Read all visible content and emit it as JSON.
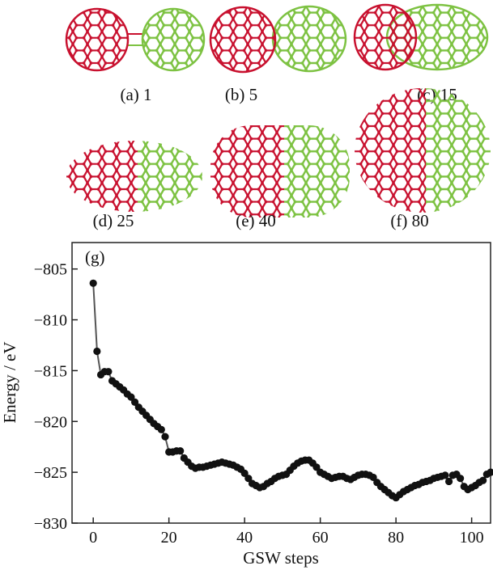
{
  "panels": [
    {
      "id": "a",
      "label": "(a) 1"
    },
    {
      "id": "b",
      "label": "(b) 5"
    },
    {
      "id": "c",
      "label": "(c) 15"
    },
    {
      "id": "d",
      "label": "(d) 25"
    },
    {
      "id": "e",
      "label": "(e) 40"
    },
    {
      "id": "f",
      "label": "(f) 80"
    }
  ],
  "colors": {
    "cage_left": "#c8102e",
    "cage_right": "#7dc242",
    "series": "#111111",
    "line": "#555555"
  },
  "chart_data": {
    "type": "line",
    "panel_label": "(g)",
    "title": "",
    "xlabel": "GSW steps",
    "ylabel": "Energy / eV",
    "xlim": [
      -5.6,
      105
    ],
    "ylim": [
      -830,
      -802.4
    ],
    "xticks": [
      0,
      20,
      40,
      60,
      80,
      100
    ],
    "xtick_labels": [
      "0",
      "20",
      "40",
      "60",
      "80",
      "100"
    ],
    "yticks": [
      -805,
      -810,
      -815,
      -820,
      -825,
      -830
    ],
    "ytick_labels": [
      "−805",
      "−810",
      "−815",
      "−820",
      "−825",
      "−830"
    ],
    "grid": false,
    "series": [
      {
        "name": "Energy",
        "x": [
          0,
          1,
          2,
          3,
          4,
          5,
          6,
          7,
          8,
          9,
          10,
          11,
          12,
          13,
          14,
          15,
          16,
          17,
          18,
          19,
          20,
          21,
          22,
          23,
          24,
          25,
          26,
          27,
          28,
          29,
          30,
          31,
          32,
          33,
          34,
          35,
          36,
          37,
          38,
          39,
          40,
          41,
          42,
          43,
          44,
          45,
          46,
          47,
          48,
          49,
          50,
          51,
          52,
          53,
          54,
          55,
          56,
          57,
          58,
          59,
          60,
          61,
          62,
          63,
          64,
          65,
          66,
          67,
          68,
          69,
          70,
          71,
          72,
          73,
          74,
          75,
          76,
          77,
          78,
          79,
          80,
          81,
          82,
          83,
          84,
          85,
          86,
          87,
          88,
          89,
          90,
          91,
          92,
          93,
          94,
          95,
          96,
          97,
          98,
          99,
          100,
          101,
          102,
          103,
          104,
          105
        ],
        "y": [
          -806.4,
          -813.1,
          -815.4,
          -815.1,
          -815.1,
          -816.0,
          -816.3,
          -816.6,
          -816.9,
          -817.3,
          -817.6,
          -818.1,
          -818.6,
          -819.0,
          -819.4,
          -819.8,
          -820.2,
          -820.5,
          -820.8,
          -821.5,
          -823.0,
          -823.0,
          -822.9,
          -822.9,
          -823.6,
          -824.0,
          -824.4,
          -824.6,
          -824.5,
          -824.5,
          -824.4,
          -824.3,
          -824.2,
          -824.1,
          -824.0,
          -824.1,
          -824.2,
          -824.3,
          -824.5,
          -824.7,
          -825.1,
          -825.6,
          -826.1,
          -826.3,
          -826.5,
          -826.4,
          -826.1,
          -825.9,
          -825.6,
          -825.4,
          -825.3,
          -825.2,
          -824.8,
          -824.4,
          -824.1,
          -823.9,
          -823.8,
          -823.8,
          -824.1,
          -824.5,
          -825.0,
          -825.2,
          -825.4,
          -825.6,
          -825.5,
          -825.4,
          -825.4,
          -825.6,
          -825.7,
          -825.5,
          -825.3,
          -825.2,
          -825.2,
          -825.3,
          -825.5,
          -826.0,
          -826.4,
          -826.7,
          -827.0,
          -827.3,
          -827.5,
          -827.2,
          -826.9,
          -826.7,
          -826.5,
          -826.3,
          -826.2,
          -826.0,
          -825.9,
          -825.8,
          -825.6,
          -825.5,
          -825.4,
          -825.3,
          -825.9,
          -825.3,
          -825.2,
          -825.6,
          -826.4,
          -826.7,
          -826.5,
          -826.3,
          -826.0,
          -825.8,
          -825.2,
          -825.0
        ]
      }
    ]
  }
}
